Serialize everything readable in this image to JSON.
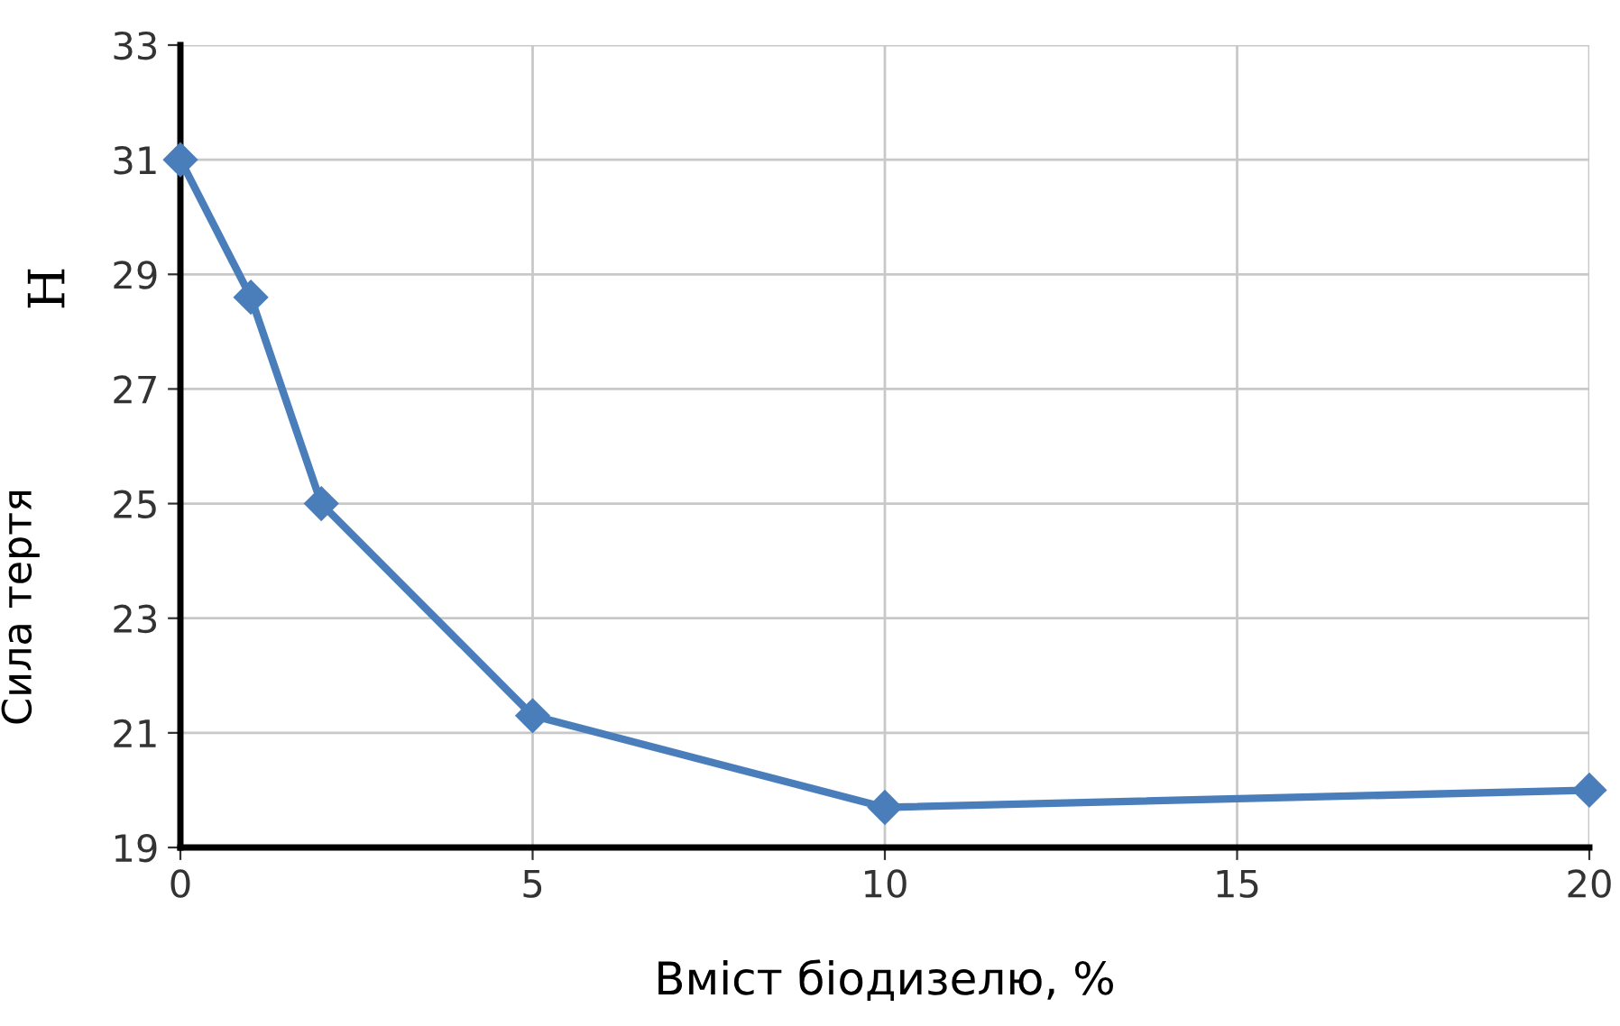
{
  "chart_data": {
    "type": "line",
    "xlabel": "Вміст біодизелю, %",
    "ylabel": "Сила тертя",
    "annotations": [
      "Н"
    ],
    "x": [
      0,
      1,
      2,
      5,
      10,
      20
    ],
    "series": [
      {
        "color": "#4a7ebb",
        "values": [
          31.0,
          28.6,
          25.0,
          21.3,
          19.7,
          20.0
        ]
      }
    ],
    "xlim": [
      0,
      20
    ],
    "xticks": [
      0,
      5,
      10,
      15,
      20
    ],
    "ylim": [
      19,
      33
    ],
    "yticks": [
      19,
      21,
      23,
      25,
      27,
      29,
      31,
      33
    ],
    "grid": true,
    "marker": "diamond",
    "line_style": "solid"
  }
}
